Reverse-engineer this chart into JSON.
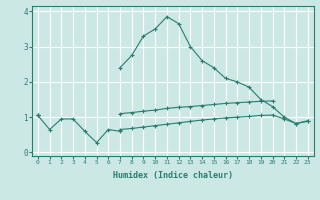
{
  "xlabel": "Humidex (Indice chaleur)",
  "x_values": [
    0,
    1,
    2,
    3,
    4,
    5,
    6,
    7,
    8,
    9,
    10,
    11,
    12,
    13,
    14,
    15,
    16,
    17,
    18,
    19,
    20,
    21,
    22,
    23
  ],
  "line1": [
    1.05,
    0.65,
    0.95,
    0.95,
    0.6,
    0.28,
    0.65,
    0.6,
    null,
    null,
    null,
    null,
    null,
    null,
    null,
    null,
    null,
    null,
    null,
    null,
    null,
    null,
    null,
    null
  ],
  "line2": [
    1.05,
    null,
    null,
    null,
    null,
    null,
    null,
    2.4,
    2.75,
    3.3,
    3.5,
    3.85,
    3.65,
    3.0,
    2.6,
    2.4,
    2.1,
    2.0,
    1.85,
    1.5,
    1.3,
    1.0,
    0.82,
    0.9
  ],
  "line3": [
    1.05,
    null,
    null,
    null,
    null,
    null,
    null,
    1.1,
    1.13,
    1.17,
    1.2,
    1.25,
    1.28,
    1.3,
    1.33,
    1.36,
    1.39,
    1.41,
    1.43,
    1.45,
    1.46,
    null,
    null,
    null
  ],
  "line4": [
    1.05,
    null,
    null,
    null,
    null,
    null,
    null,
    0.65,
    0.68,
    0.72,
    0.76,
    0.8,
    0.84,
    0.88,
    0.92,
    0.95,
    0.98,
    1.0,
    1.02,
    1.05,
    1.06,
    0.95,
    0.82,
    0.88
  ],
  "ylim": [
    -0.1,
    4.15
  ],
  "xlim": [
    -0.5,
    23.5
  ],
  "yticks": [
    0,
    1,
    2,
    3,
    4
  ],
  "line_color": "#2a7d6e",
  "bg_color": "#cce8e5",
  "grid_color": "#ffffff",
  "marker": "+"
}
